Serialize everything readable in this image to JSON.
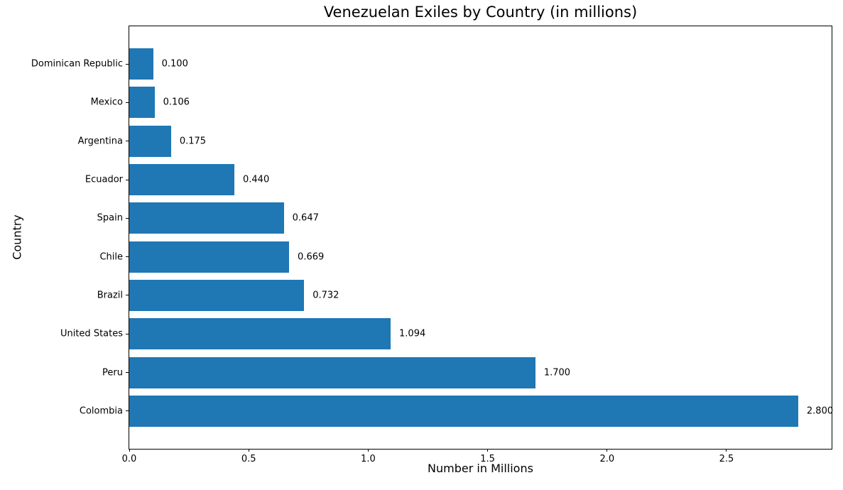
{
  "chart_data": {
    "type": "bar",
    "orientation": "horizontal",
    "title": "Venezuelan Exiles by Country (in millions)",
    "xlabel": "Number in Millions",
    "ylabel": "Country",
    "categories_top_to_bottom": [
      "Dominican Republic",
      "Mexico",
      "Argentina",
      "Ecuador",
      "Spain",
      "Chile",
      "Brazil",
      "United States",
      "Peru",
      "Colombia"
    ],
    "values": [
      0.1,
      0.106,
      0.175,
      0.44,
      0.647,
      0.669,
      0.732,
      1.094,
      1.7,
      2.8
    ],
    "value_labels": [
      "0.100",
      "0.106",
      "0.175",
      "0.440",
      "0.647",
      "0.669",
      "0.732",
      "1.094",
      "1.700",
      "2.800"
    ],
    "xticks": [
      "0.0",
      "0.5",
      "1.0",
      "1.5",
      "2.0",
      "2.5"
    ],
    "xtick_values": [
      0,
      0.5,
      1.0,
      1.5,
      2.0,
      2.5
    ],
    "xlim": [
      0,
      2.94
    ],
    "bar_color": "#1f77b4",
    "grid": false,
    "legend": null
  }
}
